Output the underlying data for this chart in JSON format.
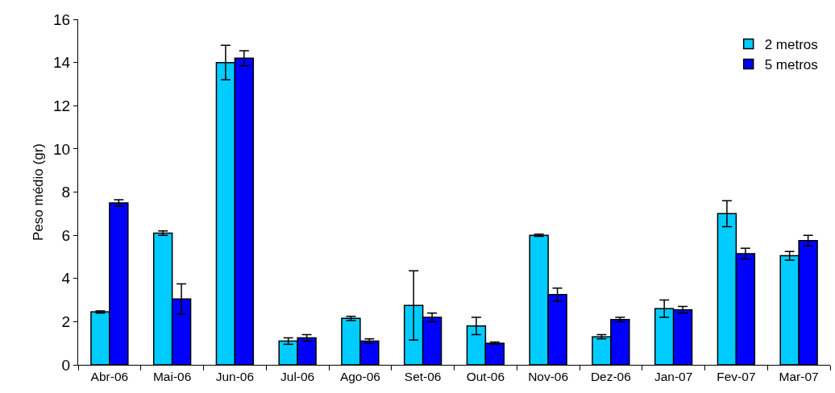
{
  "chart_data": {
    "type": "bar",
    "ylabel": "Peso médio (gr)",
    "categories": [
      "Abr-06",
      "Mai-06",
      "Jun-06",
      "Jul-06",
      "Ago-06",
      "Set-06",
      "Out-06",
      "Nov-06",
      "Dez-06",
      "Jan-07",
      "Fev-07",
      "Mar-07"
    ],
    "series": [
      {
        "name": "2 metros",
        "color": "#00ccff",
        "values": [
          2.45,
          6.1,
          14.0,
          1.1,
          2.15,
          2.75,
          1.8,
          6.0,
          1.3,
          2.6,
          7.0,
          5.05
        ],
        "errors": [
          0.05,
          0.1,
          0.8,
          0.15,
          0.1,
          1.6,
          0.4,
          0.05,
          0.1,
          0.4,
          0.6,
          0.2
        ]
      },
      {
        "name": "5 metros",
        "color": "#0000ff",
        "values": [
          7.5,
          3.05,
          14.2,
          1.25,
          1.1,
          2.2,
          1.0,
          3.25,
          2.1,
          2.55,
          5.15,
          5.75
        ],
        "errors": [
          0.15,
          0.7,
          0.35,
          0.15,
          0.1,
          0.2,
          0.05,
          0.3,
          0.1,
          0.15,
          0.25,
          0.25
        ]
      }
    ],
    "ylim": [
      0,
      16
    ],
    "yticks": [
      0,
      2,
      4,
      6,
      8,
      10,
      12,
      14,
      16
    ],
    "grid": false,
    "legend": "top right"
  }
}
